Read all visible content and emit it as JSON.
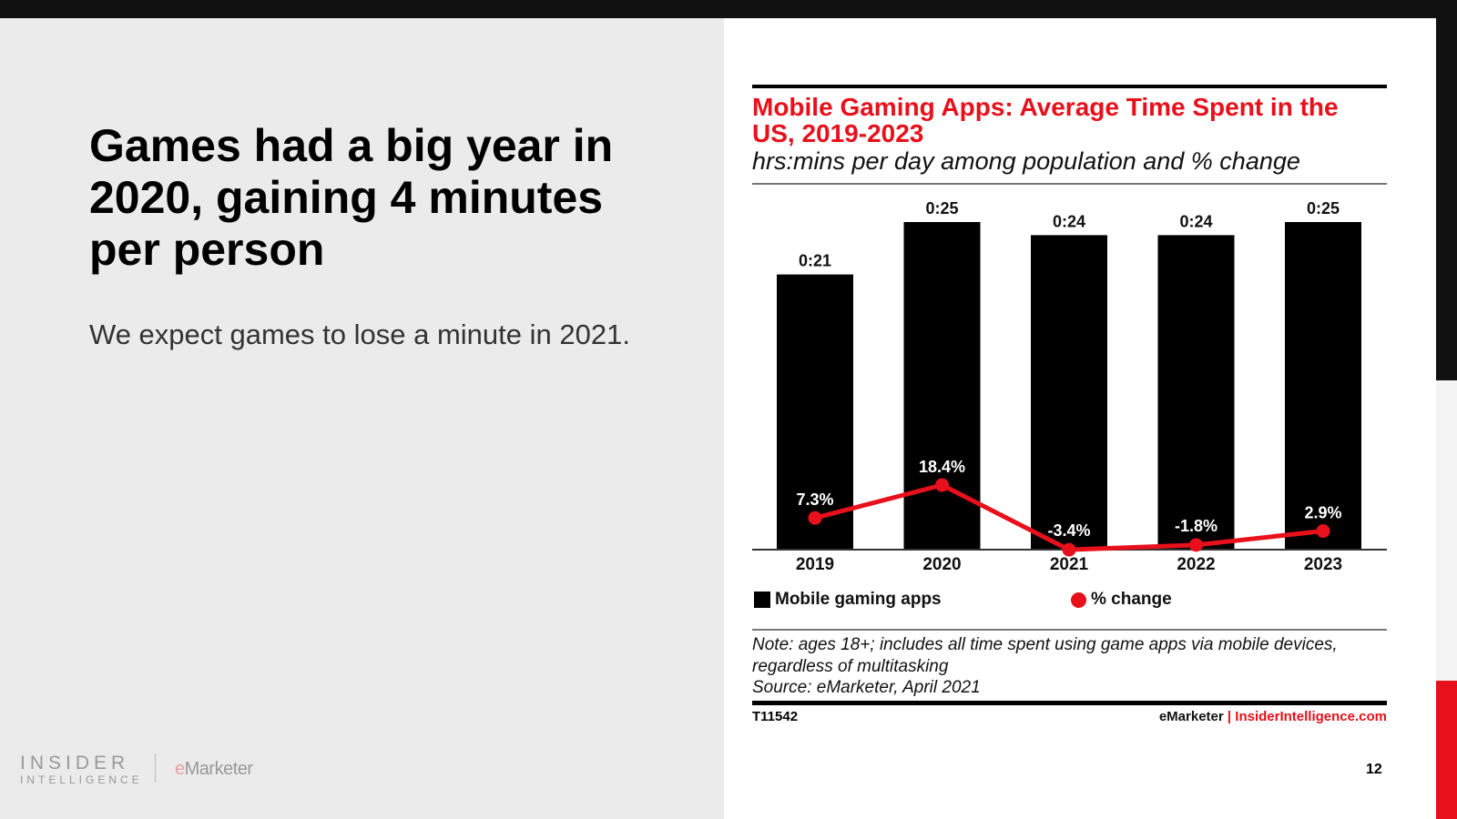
{
  "slide": {
    "headline": "Games had a big year in 2020, gaining 4 minutes per person",
    "subtext": "We expect games to lose a minute in 2021.",
    "logo_insider": "INSIDER",
    "logo_intelligence": "INTELLIGENCE",
    "logo_emarketer_e": "e",
    "logo_emarketer": "Marketer",
    "page_number": "12"
  },
  "chart_data": {
    "type": "bar",
    "title": "Mobile Gaming Apps: Average Time Spent in the US, 2019-2023",
    "subtitle": "hrs:mins per day among population and % change",
    "categories": [
      "2019",
      "2020",
      "2021",
      "2022",
      "2023"
    ],
    "series": [
      {
        "name": "Mobile gaming apps",
        "type": "bar",
        "values_minutes": [
          21,
          25,
          24,
          24,
          25
        ],
        "labels": [
          "0:21",
          "0:25",
          "0:24",
          "0:24",
          "0:25"
        ],
        "color": "#000000"
      },
      {
        "name": "% change",
        "type": "line",
        "values": [
          7.3,
          18.4,
          -3.4,
          -1.8,
          2.9
        ],
        "labels": [
          "7.3%",
          "18.4%",
          "-3.4%",
          "-1.8%",
          "2.9%"
        ],
        "color": "#e8101b"
      }
    ],
    "grid": false,
    "legend": "bottom",
    "note": "Note: ages 18+; includes all time spent using game apps via mobile devices, regardless of multitasking",
    "source": "Source: eMarketer, April 2021",
    "chart_id": "T11542",
    "credit_left": "eMarketer",
    "credit_sep": " | ",
    "credit_right": "InsiderIntelligence.com"
  },
  "colors": {
    "accent": "#e8101b",
    "bar": "#000000",
    "background": "#ebebeb"
  }
}
